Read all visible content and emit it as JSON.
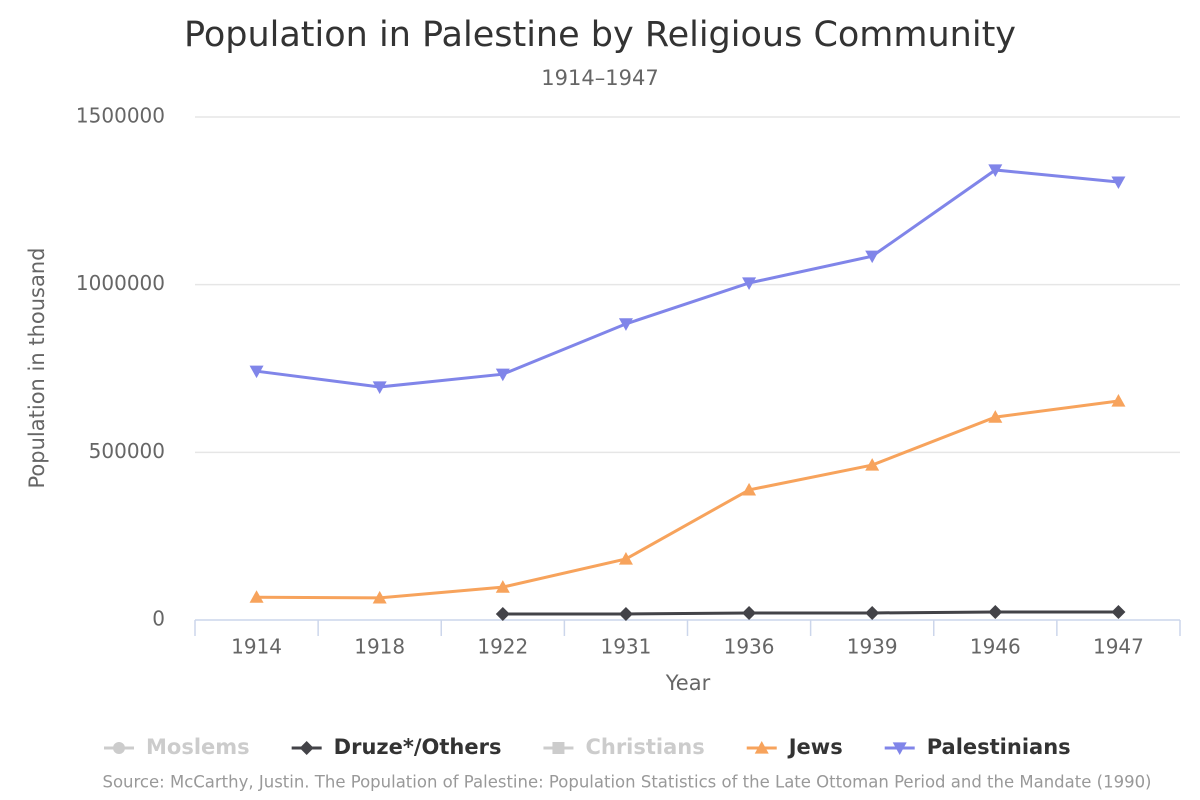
{
  "chart_data": {
    "type": "line",
    "title": "Population in Palestine by Religious Community",
    "subtitle": "1914–1947",
    "y_label": "Population in thousand",
    "x_label": "Year",
    "source": "Source: McCarthy, Justin. The Population of Palestine: Population Statistics of the Late Ottoman Period and the Mandate (1990)",
    "categories": [
      "1914",
      "1918",
      "1922",
      "1931",
      "1936",
      "1939",
      "1946",
      "1947"
    ],
    "ylim": [
      0,
      1500000
    ],
    "yticks": [
      0,
      500000,
      1000000,
      1500000
    ],
    "grid": true,
    "legend": "bottom",
    "series": [
      {
        "name": "Moslems",
        "color": "#7cb5ec",
        "symbol": "circle",
        "visible": false
      },
      {
        "name": "Druze*/Others",
        "color": "#434348",
        "symbol": "diamond",
        "visible": true,
        "values": [
          null,
          null,
          18000,
          18000,
          21000,
          21000,
          24000,
          24000
        ]
      },
      {
        "name": "Christians",
        "color": "#90ed7d",
        "symbol": "square",
        "visible": false
      },
      {
        "name": "Jews",
        "color": "#f7a35c",
        "symbol": "triangle",
        "visible": true,
        "values": [
          68000,
          66000,
          98000,
          182000,
          388000,
          462000,
          605000,
          653000
        ]
      },
      {
        "name": "Palestinians",
        "color": "#8085e9",
        "symbol": "triangle-down",
        "visible": true,
        "values": [
          742000,
          695000,
          733000,
          883000,
          1005000,
          1085000,
          1342000,
          1306000
        ]
      }
    ]
  }
}
